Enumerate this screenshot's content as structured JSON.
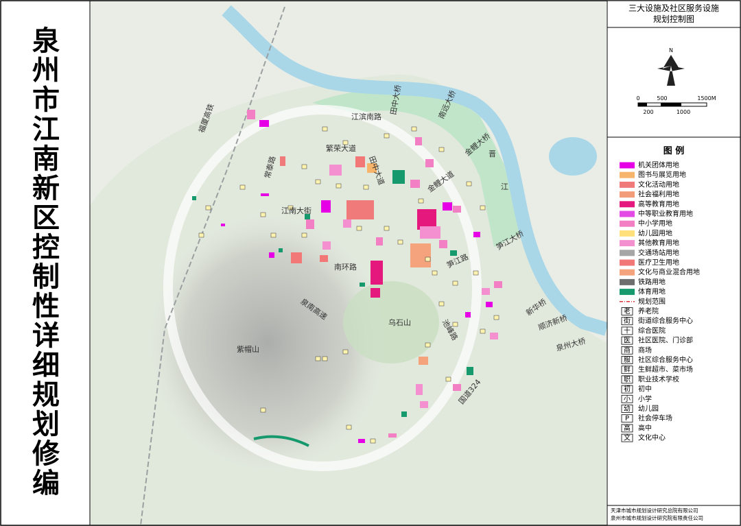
{
  "header": {
    "title": "泉州市江南新区控制性详细规划修编"
  },
  "panel": {
    "title_lines": [
      "三大设施及社区服务设施",
      "规划控制图"
    ],
    "north": "N",
    "scale_top": [
      "0",
      "500",
      "1500M"
    ],
    "scale_bottom": [
      "200",
      "1000"
    ],
    "legend_title": "图 例",
    "legend": [
      {
        "label": "机关团体用地",
        "color": "#e600e6"
      },
      {
        "label": "图书与展览用地",
        "color": "#f6b56b"
      },
      {
        "label": "文化活动用地",
        "color": "#f07a7a"
      },
      {
        "label": "社会福利用地",
        "color": "#f39c7a"
      },
      {
        "label": "高等教育用地",
        "color": "#e5197d"
      },
      {
        "label": "中等职业教育用地",
        "color": "#e44ae4"
      },
      {
        "label": "中小学用地",
        "color": "#f27fc4"
      },
      {
        "label": "幼儿园用地",
        "color": "#ffe07a"
      },
      {
        "label": "其他教育用地",
        "color": "#f490d0"
      },
      {
        "label": "交通场站用地",
        "color": "#a6a6a6"
      },
      {
        "label": "医疗卫生用地",
        "color": "#f27777"
      },
      {
        "label": "文化与商业混合用地",
        "color": "#f4a37c"
      },
      {
        "label": "铁路用地",
        "color": "#6e6e6e"
      },
      {
        "label": "体育用地",
        "color": "#17996e"
      },
      {
        "label": "规划范围",
        "color": "#e0303a",
        "dashed": true
      }
    ],
    "icons": [
      {
        "symbol": "老",
        "label": "养老院"
      },
      {
        "symbol": "街",
        "label": "街道综合服务中心"
      },
      {
        "symbol": "十",
        "label": "综合医院"
      },
      {
        "symbol": "医",
        "label": "社区医院、门诊部"
      },
      {
        "symbol": "商",
        "label": "商场"
      },
      {
        "symbol": "服",
        "label": "社区综合服务中心"
      },
      {
        "symbol": "鲜",
        "label": "生鲜超市、菜市场"
      },
      {
        "symbol": "职",
        "label": "职业技术学校"
      },
      {
        "symbol": "初",
        "label": "初中"
      },
      {
        "symbol": "小",
        "label": "小学"
      },
      {
        "symbol": "幼",
        "label": "幼儿园"
      },
      {
        "symbol": "P",
        "label": "社会停车场"
      },
      {
        "symbol": "高",
        "label": "高中"
      },
      {
        "symbol": "文",
        "label": "文化中心"
      }
    ],
    "credits": [
      "天津市城市规划设计研究总院有限公司",
      "泉州市城市规划设计研究院有限责任公司"
    ]
  },
  "map": {
    "labels": [
      "福厦高铁",
      "江滨南路",
      "田中大桥",
      "南远大桥",
      "金鲤大桥",
      "晋",
      "江",
      "繁荣大道",
      "田中大道",
      "金鲤大道",
      "常泰路",
      "江南大街",
      "南环路",
      "笋江大桥",
      "笋江路",
      "新华桥",
      "顺济新桥",
      "泉州大桥",
      "泉南高速",
      "乌石山",
      "紫帽山",
      "池峰路",
      "国道324"
    ]
  }
}
